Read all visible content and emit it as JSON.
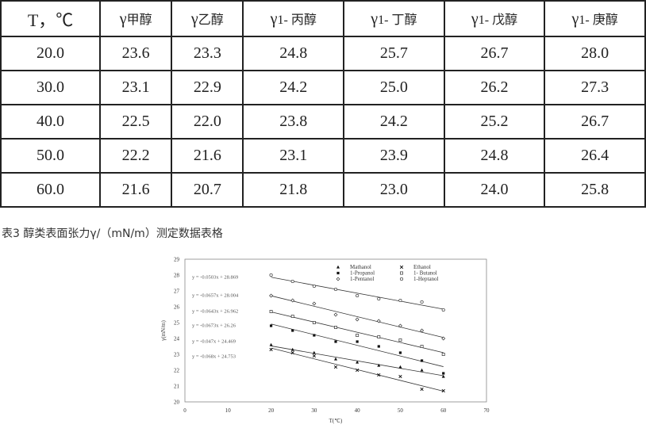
{
  "table": {
    "headers": [
      {
        "main": "T，℃",
        "sub": ""
      },
      {
        "main": "γ",
        "sub": "甲醇"
      },
      {
        "main": "γ",
        "sub": "乙醇"
      },
      {
        "main": "γ",
        "sub": "1- 丙醇"
      },
      {
        "main": "γ",
        "sub": "1- 丁醇"
      },
      {
        "main": "γ",
        "sub": "1- 戊醇"
      },
      {
        "main": "γ",
        "sub": "1- 庚醇"
      }
    ],
    "rows": [
      [
        "20.0",
        "23.6",
        "23.3",
        "24.8",
        "25.7",
        "26.7",
        "28.0"
      ],
      [
        "30.0",
        "23.1",
        "22.9",
        "24.2",
        "25.0",
        "26.2",
        "27.3"
      ],
      [
        "40.0",
        "22.5",
        "22.0",
        "23.8",
        "24.2",
        "25.2",
        "26.7"
      ],
      [
        "50.0",
        "22.2",
        "21.6",
        "23.1",
        "23.9",
        "24.8",
        "26.4"
      ],
      [
        "60.0",
        "21.6",
        "20.7",
        "21.8",
        "23.0",
        "24.0",
        "25.8"
      ]
    ]
  },
  "caption": "表3 醇类表面张力γ/（mN/m）测定数据表格",
  "chart_data": {
    "type": "scatter",
    "xlabel": "T(℃)",
    "ylabel": "γ(mN/m)",
    "xlim": [
      0,
      70
    ],
    "ylim": [
      20,
      29
    ],
    "xticks": [
      0,
      10,
      20,
      30,
      40,
      50,
      60,
      70
    ],
    "yticks": [
      20,
      21,
      22,
      23,
      24,
      25,
      26,
      27,
      28,
      29
    ],
    "x": [
      20,
      25,
      30,
      35,
      40,
      45,
      50,
      55,
      60
    ],
    "legend_position": "top-right",
    "series": [
      {
        "name": "Mathanol",
        "marker": "triangle",
        "values": [
          23.6,
          23.3,
          23.1,
          22.7,
          22.5,
          22.3,
          22.2,
          22.0,
          21.6
        ],
        "fit": {
          "slope": -0.047,
          "intercept": 24.469
        },
        "equation": "y = -0.047x + 24.469"
      },
      {
        "name": "Ethanol",
        "marker": "x",
        "values": [
          23.3,
          23.1,
          22.9,
          22.2,
          22.0,
          21.7,
          21.6,
          20.8,
          20.7
        ],
        "fit": {
          "slope": -0.068,
          "intercept": 24.753
        },
        "equation": "y = -0.068x + 24.753"
      },
      {
        "name": "1-Propanol",
        "marker": "filled-square",
        "values": [
          24.8,
          24.5,
          24.2,
          23.8,
          23.8,
          23.5,
          23.1,
          22.6,
          21.8
        ],
        "fit": {
          "slope": -0.0673,
          "intercept": 26.26
        },
        "equation": "y = -0.0673x + 26.26"
      },
      {
        "name": "1- Butanol",
        "marker": "open-square",
        "values": [
          25.7,
          25.4,
          25.0,
          24.7,
          24.2,
          24.1,
          23.9,
          23.5,
          23.0
        ],
        "fit": {
          "slope": -0.0643,
          "intercept": 26.962
        },
        "equation": "y = -0.0643x + 26.962"
      },
      {
        "name": "1-Pentanol",
        "marker": "diamond",
        "values": [
          26.7,
          26.4,
          26.2,
          25.5,
          25.2,
          25.1,
          24.8,
          24.5,
          24.0
        ],
        "fit": {
          "slope": -0.0657,
          "intercept": 28.004
        },
        "equation": "y = -0.0657x + 28.004"
      },
      {
        "name": "1-Heptanol",
        "marker": "circle",
        "values": [
          28.0,
          27.6,
          27.3,
          27.1,
          26.7,
          26.5,
          26.4,
          26.3,
          25.8
        ],
        "fit": {
          "slope": -0.0503,
          "intercept": 28.869
        },
        "equation": "y = -0.0503x + 28.869"
      }
    ]
  }
}
